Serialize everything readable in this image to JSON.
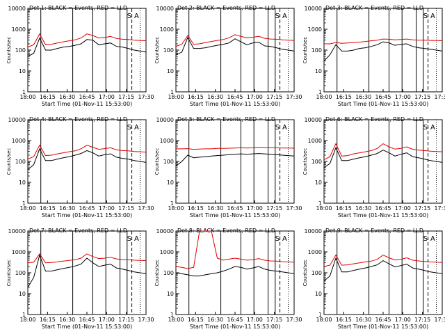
{
  "figure": {
    "x_tick_labels": [
      "18:00",
      "16:15",
      "16:30",
      "16:45",
      "17:00",
      "17:15",
      "17:30"
    ],
    "y_tick_labels": [
      "1",
      "10",
      "100",
      "1000",
      "10000"
    ],
    "xlabel": "Start Time (01-Nov-11 15:53:00)",
    "ylabel": "Counts/sec",
    "flags": [
      "S",
      "A"
    ],
    "colors": {
      "events": "#000000",
      "lld": "#e00000",
      "axes": "#000000"
    }
  },
  "chart_data": [
    {
      "type": "line",
      "title": "Det 1: BLACK = Events, RED = LLD",
      "ylim": [
        1,
        10000
      ],
      "xlim": [
        0,
        100
      ],
      "x": [
        0,
        5,
        10,
        15,
        20,
        25,
        30,
        35,
        40,
        45,
        50,
        55,
        60,
        65,
        70,
        75,
        80,
        85,
        90,
        95,
        100
      ],
      "events": [
        50,
        70,
        380,
        100,
        100,
        120,
        140,
        150,
        170,
        200,
        320,
        300,
        180,
        200,
        220,
        150,
        140,
        120,
        100,
        90,
        80
      ],
      "lld": [
        140,
        180,
        600,
        180,
        190,
        220,
        250,
        280,
        310,
        380,
        600,
        500,
        380,
        400,
        450,
        360,
        330,
        320,
        300,
        290,
        280
      ]
    },
    {
      "type": "line",
      "title": "Det 2: BLACK = Events, RED = LLD",
      "ylim": [
        1,
        10000
      ],
      "xlim": [
        0,
        100
      ],
      "x": [
        0,
        5,
        10,
        15,
        20,
        25,
        30,
        35,
        40,
        45,
        50,
        55,
        60,
        65,
        70,
        75,
        80,
        85,
        90,
        95,
        100
      ],
      "events": [
        60,
        80,
        400,
        120,
        120,
        130,
        150,
        170,
        190,
        220,
        350,
        250,
        180,
        220,
        240,
        160,
        150,
        130,
        110,
        100,
        90
      ],
      "lld": [
        150,
        190,
        500,
        190,
        200,
        230,
        260,
        290,
        320,
        390,
        550,
        450,
        390,
        410,
        460,
        370,
        340,
        330,
        310,
        300,
        290
      ]
    },
    {
      "type": "line",
      "title": "Det 3: BLACK = Events, RED = LLD",
      "ylim": [
        1,
        10000
      ],
      "xlim": [
        0,
        100
      ],
      "x": [
        0,
        5,
        10,
        15,
        20,
        25,
        30,
        35,
        40,
        45,
        50,
        55,
        60,
        65,
        70,
        75,
        80,
        85,
        90,
        95,
        100
      ],
      "events": [
        30,
        60,
        180,
        90,
        90,
        100,
        120,
        130,
        150,
        180,
        250,
        220,
        170,
        190,
        200,
        150,
        130,
        120,
        110,
        100,
        90
      ],
      "lld": [
        200,
        200,
        230,
        210,
        220,
        230,
        240,
        260,
        280,
        300,
        340,
        330,
        310,
        320,
        340,
        310,
        300,
        300,
        290,
        290,
        280
      ]
    },
    {
      "type": "line",
      "title": "Det 4: BLACK = Events, RED = LLD",
      "ylim": [
        1,
        10000
      ],
      "xlim": [
        0,
        100
      ],
      "x": [
        0,
        5,
        10,
        15,
        20,
        25,
        30,
        35,
        40,
        45,
        50,
        55,
        60,
        65,
        70,
        75,
        80,
        85,
        90,
        95,
        100
      ],
      "events": [
        40,
        70,
        400,
        110,
        110,
        130,
        150,
        170,
        200,
        240,
        330,
        260,
        180,
        210,
        230,
        160,
        140,
        130,
        110,
        100,
        90
      ],
      "lld": [
        130,
        170,
        600,
        190,
        200,
        230,
        260,
        290,
        320,
        400,
        600,
        480,
        380,
        410,
        450,
        360,
        330,
        320,
        300,
        290,
        280
      ]
    },
    {
      "type": "line",
      "title": "Det 5: BLACK = Events, RED = LLD",
      "ylim": [
        1,
        10000
      ],
      "xlim": [
        0,
        100
      ],
      "x": [
        0,
        5,
        10,
        15,
        20,
        25,
        30,
        35,
        40,
        45,
        50,
        55,
        60,
        65,
        70,
        75,
        80,
        85,
        90,
        95,
        100
      ],
      "events": [
        60,
        100,
        200,
        150,
        160,
        170,
        180,
        190,
        200,
        210,
        220,
        230,
        220,
        230,
        240,
        230,
        220,
        210,
        200,
        190,
        180
      ],
      "lld": [
        400,
        400,
        410,
        380,
        390,
        400,
        400,
        420,
        420,
        430,
        440,
        450,
        440,
        450,
        470,
        460,
        450,
        450,
        440,
        440,
        430
      ]
    },
    {
      "type": "line",
      "title": "Det 6: BLACK = Events, RED = LLD",
      "ylim": [
        1,
        10000
      ],
      "xlim": [
        0,
        100
      ],
      "x": [
        0,
        5,
        10,
        15,
        20,
        25,
        30,
        35,
        40,
        45,
        50,
        55,
        60,
        65,
        70,
        75,
        80,
        85,
        90,
        95,
        100
      ],
      "events": [
        50,
        80,
        450,
        110,
        110,
        130,
        150,
        170,
        200,
        240,
        350,
        260,
        180,
        220,
        260,
        170,
        150,
        130,
        110,
        100,
        90
      ],
      "lld": [
        120,
        170,
        700,
        180,
        190,
        230,
        260,
        290,
        330,
        420,
        700,
        500,
        390,
        420,
        500,
        380,
        350,
        330,
        310,
        300,
        290
      ]
    },
    {
      "type": "line",
      "title": "Det 7: BLACK = Events, RED = LLD",
      "ylim": [
        1,
        10000
      ],
      "xlim": [
        0,
        100
      ],
      "x": [
        0,
        5,
        10,
        15,
        20,
        25,
        30,
        35,
        40,
        45,
        50,
        55,
        60,
        65,
        70,
        75,
        80,
        85,
        90,
        95,
        100
      ],
      "events": [
        20,
        60,
        700,
        120,
        120,
        140,
        160,
        180,
        210,
        260,
        500,
        300,
        200,
        230,
        260,
        170,
        150,
        130,
        110,
        100,
        90
      ],
      "lld": [
        300,
        320,
        800,
        300,
        310,
        330,
        360,
        390,
        420,
        500,
        800,
        600,
        480,
        500,
        550,
        460,
        430,
        420,
        400,
        390,
        380
      ]
    },
    {
      "type": "line",
      "title": "Det 8: BLACK = Events, RED = LLD",
      "ylim": [
        1,
        10000
      ],
      "xlim": [
        0,
        100
      ],
      "x": [
        0,
        5,
        10,
        15,
        20,
        25,
        30,
        35,
        40,
        45,
        50,
        55,
        60,
        65,
        70,
        75,
        80,
        85,
        90,
        95,
        100
      ],
      "events": [
        100,
        90,
        80,
        70,
        70,
        80,
        90,
        100,
        120,
        150,
        200,
        180,
        150,
        170,
        200,
        150,
        130,
        120,
        110,
        100,
        90
      ],
      "lld": [
        200,
        180,
        160,
        180,
        10000,
        10000,
        10000,
        500,
        400,
        450,
        500,
        450,
        400,
        420,
        480,
        400,
        370,
        360,
        340,
        330,
        320
      ]
    },
    {
      "type": "line",
      "title": "Det 9: BLACK = Events, RED = LLD",
      "ylim": [
        1,
        10000
      ],
      "xlim": [
        0,
        100
      ],
      "x": [
        0,
        5,
        10,
        15,
        20,
        25,
        30,
        35,
        40,
        45,
        50,
        55,
        60,
        65,
        70,
        75,
        80,
        85,
        90,
        95,
        100
      ],
      "events": [
        40,
        70,
        500,
        110,
        110,
        130,
        150,
        170,
        200,
        240,
        380,
        270,
        190,
        220,
        260,
        170,
        150,
        130,
        110,
        100,
        90
      ],
      "lld": [
        200,
        230,
        700,
        230,
        240,
        270,
        300,
        330,
        360,
        440,
        700,
        520,
        410,
        440,
        520,
        400,
        370,
        350,
        330,
        320,
        310
      ]
    }
  ]
}
